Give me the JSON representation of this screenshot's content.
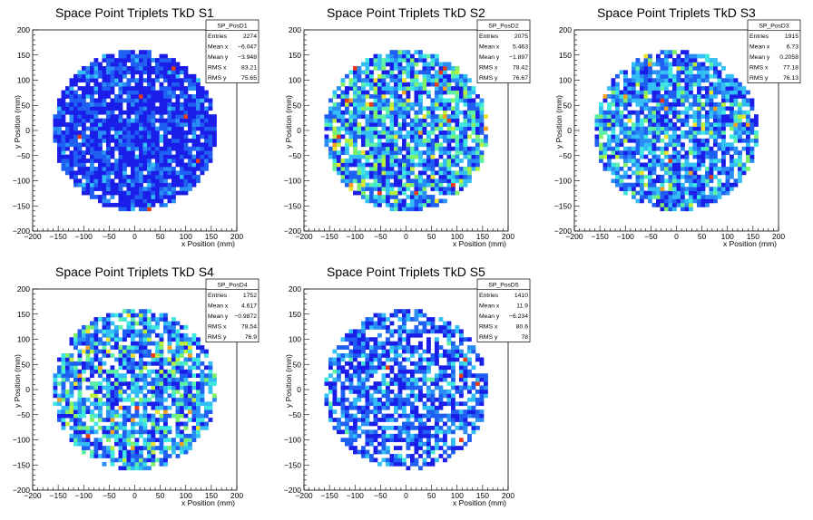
{
  "colors": {
    "palette": [
      "#1a1ee8",
      "#1f5ff2",
      "#2a8ef5",
      "#33bff5",
      "#3ee8e0",
      "#5cf0a8",
      "#7ef06a",
      "#b8ef3c",
      "#eee32c",
      "#f4a020",
      "#e83c16"
    ],
    "axis": "#000000",
    "background": "#ffffff"
  },
  "chart_data": [
    {
      "type": "heatmap",
      "title": "Space Point Triplets TkD S1",
      "xlabel": "x Position (mm)",
      "ylabel": "y Position (mm)",
      "xlim": [
        -200,
        200
      ],
      "ylim": [
        -200,
        200
      ],
      "xticks": [
        "−200",
        "−150",
        "−100",
        "−50",
        "0",
        "50",
        "100",
        "150",
        "200"
      ],
      "yticks": [
        "−200",
        "−150",
        "−100",
        "−50",
        "0",
        "50",
        "100",
        "150",
        "200"
      ],
      "bins": 50,
      "radius_mm": 160,
      "color_mix": [
        0.55,
        0.3,
        0.1,
        0.05,
        0,
        0,
        0,
        0,
        0,
        0,
        0.004
      ],
      "fill": 0.92,
      "seed": 11,
      "stats": {
        "name": "SP_PosD1",
        "rows": [
          {
            "label": "Entries",
            "value": "2274"
          },
          {
            "label": "Mean x",
            "value": "−6.047"
          },
          {
            "label": "Mean y",
            "value": "−3.948"
          },
          {
            "label": "RMS x",
            "value": "83.21"
          },
          {
            "label": "RMS y",
            "value": "75.65"
          }
        ]
      }
    },
    {
      "type": "heatmap",
      "title": "Space Point Triplets TkD S2",
      "xlabel": "x Position (mm)",
      "ylabel": "y Position (mm)",
      "xlim": [
        -200,
        200
      ],
      "ylim": [
        -200,
        200
      ],
      "xticks": [
        "−200",
        "−150",
        "−100",
        "−50",
        "0",
        "50",
        "100",
        "150",
        "200"
      ],
      "yticks": [
        "−200",
        "−150",
        "−100",
        "−50",
        "0",
        "50",
        "100",
        "150",
        "200"
      ],
      "bins": 50,
      "radius_mm": 160,
      "color_mix": [
        0.18,
        0.2,
        0.12,
        0.22,
        0.08,
        0.08,
        0.05,
        0.03,
        0.02,
        0.01,
        0.008
      ],
      "fill": 0.84,
      "seed": 23,
      "stats": {
        "name": "SP_PosD2",
        "rows": [
          {
            "label": "Entries",
            "value": "2075"
          },
          {
            "label": "Mean x",
            "value": "5.463"
          },
          {
            "label": "Mean y",
            "value": "−1.897"
          },
          {
            "label": "RMS x",
            "value": "78.42"
          },
          {
            "label": "RMS y",
            "value": "76.67"
          }
        ]
      }
    },
    {
      "type": "heatmap",
      "title": "Space Point Triplets TkD S3",
      "xlabel": "x Position (mm)",
      "ylabel": "y Position (mm)",
      "xlim": [
        -200,
        200
      ],
      "ylim": [
        -200,
        200
      ],
      "xticks": [
        "−200",
        "−150",
        "−100",
        "−50",
        "0",
        "50",
        "100",
        "150",
        "200"
      ],
      "yticks": [
        "−200",
        "−150",
        "−100",
        "−50",
        "0",
        "50",
        "100",
        "150",
        "200"
      ],
      "bins": 50,
      "radius_mm": 160,
      "color_mix": [
        0.22,
        0.22,
        0.14,
        0.22,
        0.07,
        0.06,
        0.04,
        0.02,
        0.01,
        0.005,
        0.004
      ],
      "fill": 0.82,
      "seed": 37,
      "stats": {
        "name": "SP_PosD3",
        "rows": [
          {
            "label": "Entries",
            "value": "1915"
          },
          {
            "label": "Mean x",
            "value": "6.73"
          },
          {
            "label": "Mean y",
            "value": "0.2058"
          },
          {
            "label": "RMS x",
            "value": "77.18"
          },
          {
            "label": "RMS y",
            "value": "76.13"
          }
        ]
      }
    },
    {
      "type": "heatmap",
      "title": "Space Point Triplets TkD S4",
      "xlabel": "x Position (mm)",
      "ylabel": "y Position (mm)",
      "xlim": [
        -200,
        200
      ],
      "ylim": [
        -200,
        200
      ],
      "xticks": [
        "−200",
        "−150",
        "−100",
        "−50",
        "0",
        "50",
        "100",
        "150",
        "200"
      ],
      "yticks": [
        "−200",
        "−150",
        "−100",
        "−50",
        "0",
        "50",
        "100",
        "150",
        "200"
      ],
      "bins": 50,
      "radius_mm": 160,
      "color_mix": [
        0.2,
        0.22,
        0.12,
        0.18,
        0.1,
        0.08,
        0.05,
        0.02,
        0.015,
        0.01,
        0.006
      ],
      "fill": 0.74,
      "seed": 53,
      "stats": {
        "name": "SP_PosD4",
        "rows": [
          {
            "label": "Entries",
            "value": "1752"
          },
          {
            "label": "Mean x",
            "value": "4.617"
          },
          {
            "label": "Mean y",
            "value": "−0.9872"
          },
          {
            "label": "RMS x",
            "value": "78.54"
          },
          {
            "label": "RMS y",
            "value": "76.9"
          }
        ]
      }
    },
    {
      "type": "heatmap",
      "title": "Space Point Triplets TkD S5",
      "xlabel": "x Position (mm)",
      "ylabel": "y Position (mm)",
      "xlim": [
        -200,
        200
      ],
      "ylim": [
        -200,
        200
      ],
      "xticks": [
        "−200",
        "−150",
        "−100",
        "−50",
        "0",
        "50",
        "100",
        "150",
        "200"
      ],
      "yticks": [
        "−200",
        "−150",
        "−100",
        "−50",
        "0",
        "50",
        "100",
        "150",
        "200"
      ],
      "bins": 50,
      "radius_mm": 160,
      "color_mix": [
        0.35,
        0.3,
        0.1,
        0.18,
        0.03,
        0.01,
        0,
        0,
        0,
        0,
        0.004
      ],
      "fill": 0.66,
      "seed": 71,
      "stats": {
        "name": "SP_PosD5",
        "rows": [
          {
            "label": "Entries",
            "value": "1410"
          },
          {
            "label": "Mean x",
            "value": "11.9"
          },
          {
            "label": "Mean y",
            "value": "−6.234"
          },
          {
            "label": "RMS x",
            "value": "80.6"
          },
          {
            "label": "RMS y",
            "value": "78"
          }
        ]
      }
    }
  ]
}
